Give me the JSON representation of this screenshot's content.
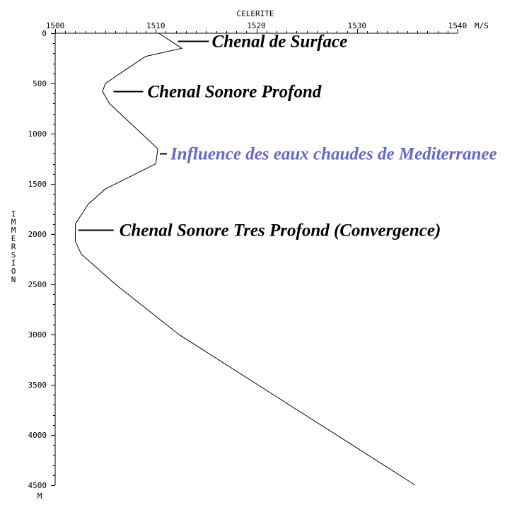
{
  "chart_data": {
    "type": "line",
    "title": "CELERITE",
    "xlabel": "CELERITE",
    "x_unit": "M/S",
    "ylabel": "IMMERSION",
    "y_unit": "M",
    "xlim": [
      1500,
      1540
    ],
    "ylim": [
      0,
      4500
    ],
    "y_inverted": true,
    "x_ticks": [
      "1500",
      "1510",
      "1520",
      "1530",
      "1540"
    ],
    "y_ticks": [
      "0",
      "500",
      "1000",
      "1500",
      "2000",
      "2500",
      "3000",
      "3500",
      "4000",
      "4500"
    ],
    "series": [
      {
        "color": "#000000",
        "points": [
          {
            "x": 1510.3,
            "y": 0
          },
          {
            "x": 1512.6,
            "y": 150
          },
          {
            "x": 1509.0,
            "y": 230
          },
          {
            "x": 1507.2,
            "y": 350
          },
          {
            "x": 1505.0,
            "y": 500
          },
          {
            "x": 1504.7,
            "y": 580
          },
          {
            "x": 1505.4,
            "y": 700
          },
          {
            "x": 1510.2,
            "y": 1150
          },
          {
            "x": 1510.0,
            "y": 1300
          },
          {
            "x": 1505.0,
            "y": 1550
          },
          {
            "x": 1503.3,
            "y": 1700
          },
          {
            "x": 1502.0,
            "y": 1900
          },
          {
            "x": 1502.0,
            "y": 2070
          },
          {
            "x": 1502.6,
            "y": 2200
          },
          {
            "x": 1506.0,
            "y": 2500
          },
          {
            "x": 1512.3,
            "y": 3000
          },
          {
            "x": 1535.8,
            "y": 4500
          }
        ]
      }
    ],
    "annotations": [
      {
        "text": "Chenal de Surface",
        "color": "#000000",
        "x": 1512.2,
        "y": 80
      },
      {
        "text": "Chenal Sonore Profond",
        "color": "#000000",
        "x": 1505.8,
        "y": 575
      },
      {
        "text": "Influence des eaux chaudes de Mediterranee",
        "color": "#6666cc",
        "x": 1510.4,
        "y": 1200
      },
      {
        "text": "Chenal Sonore Tres Profond  (Convergence)",
        "color": "#000000",
        "x": 1502.3,
        "y": 1960
      }
    ],
    "grid": false,
    "legend": "none"
  }
}
